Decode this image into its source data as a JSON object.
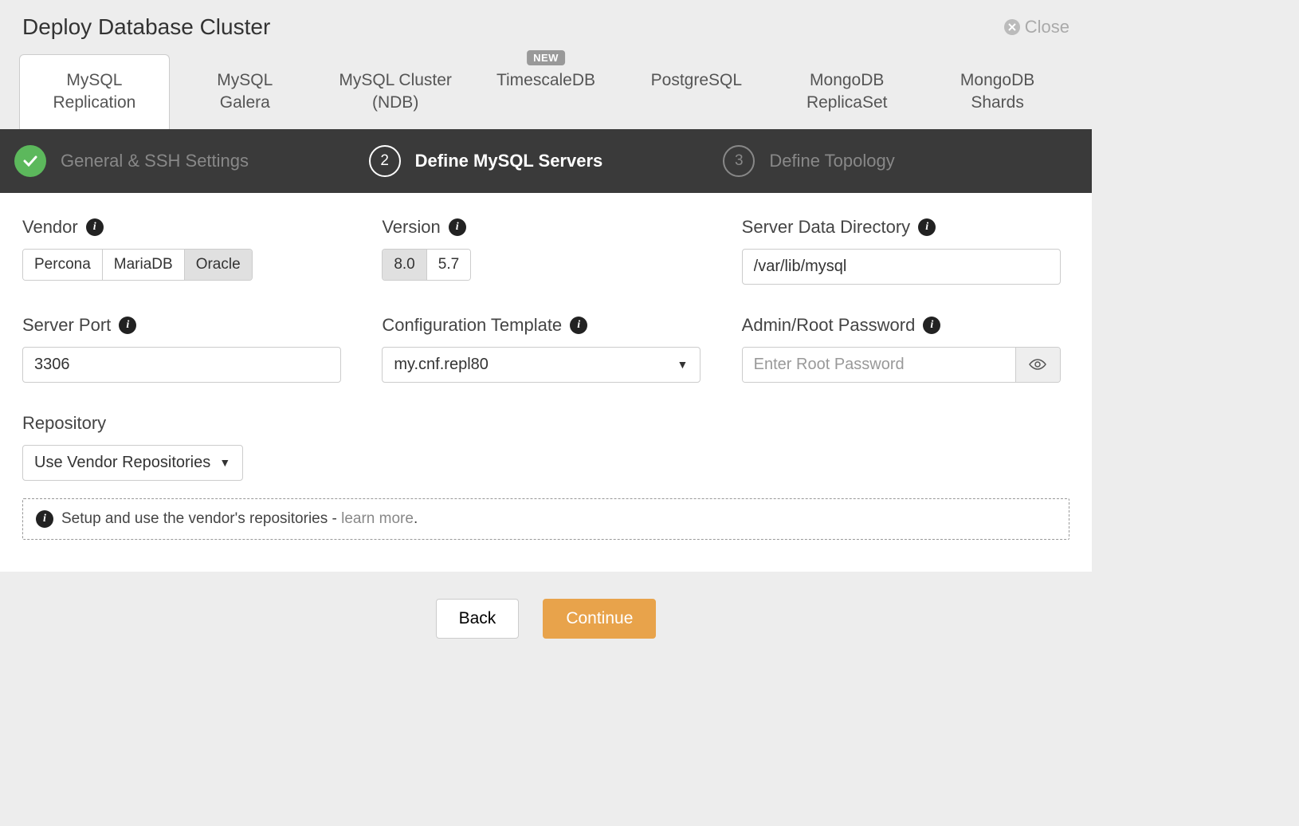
{
  "header": {
    "title": "Deploy Database Cluster",
    "close_label": "Close"
  },
  "tabs": [
    {
      "line1": "MySQL",
      "line2": "Replication",
      "active": true,
      "badge": null
    },
    {
      "line1": "MySQL",
      "line2": "Galera",
      "active": false,
      "badge": null
    },
    {
      "line1": "MySQL Cluster",
      "line2": "(NDB)",
      "active": false,
      "badge": null
    },
    {
      "line1": "TimescaleDB",
      "line2": "",
      "active": false,
      "badge": "NEW"
    },
    {
      "line1": "PostgreSQL",
      "line2": "",
      "active": false,
      "badge": null
    },
    {
      "line1": "MongoDB",
      "line2": "ReplicaSet",
      "active": false,
      "badge": null
    },
    {
      "line1": "MongoDB",
      "line2": "Shards",
      "active": false,
      "badge": null
    }
  ],
  "steps": [
    {
      "label": "General & SSH Settings",
      "state": "done"
    },
    {
      "label": "Define MySQL Servers",
      "state": "current",
      "number": "2"
    },
    {
      "label": "Define Topology",
      "state": "pending",
      "number": "3"
    }
  ],
  "form": {
    "vendor": {
      "label": "Vendor",
      "options": [
        "Percona",
        "MariaDB",
        "Oracle"
      ],
      "selected": "Oracle"
    },
    "version": {
      "label": "Version",
      "options": [
        "8.0",
        "5.7"
      ],
      "selected": "8.0"
    },
    "data_dir": {
      "label": "Server Data Directory",
      "value": "/var/lib/mysql"
    },
    "server_port": {
      "label": "Server Port",
      "value": "3306"
    },
    "config_template": {
      "label": "Configuration Template",
      "value": "my.cnf.repl80"
    },
    "root_password": {
      "label": "Admin/Root Password",
      "placeholder": "Enter Root Password",
      "value": ""
    },
    "repository": {
      "label": "Repository",
      "value": "Use Vendor Repositories"
    },
    "repo_info": {
      "text": "Setup and use the vendor's repositories - ",
      "link": "learn more"
    }
  },
  "footer": {
    "back": "Back",
    "continue": "Continue"
  },
  "colors": {
    "page_bg": "#ededed",
    "panel_bg": "#ffffff",
    "step_bar_bg": "#3a3a3a",
    "success_green": "#5cb85c",
    "primary_orange": "#e8a34b",
    "border_gray": "#cccccc",
    "text_dark": "#333333",
    "text_muted": "#888888",
    "badge_bg": "#999999"
  }
}
